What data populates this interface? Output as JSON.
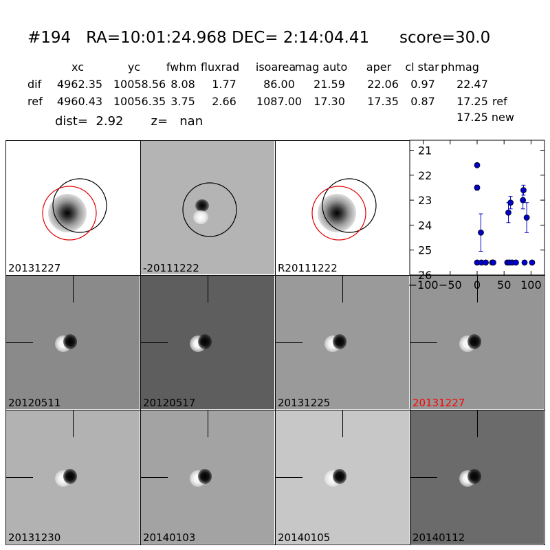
{
  "header": {
    "title": "#194   RA=10:01:24.968 DEC= 2:14:04.41      score=30.0",
    "col_headers": [
      "xc",
      "yc",
      "fwhm",
      "fluxrad",
      "isoarea",
      "mag auto",
      "aper",
      "cl star",
      "phmag"
    ],
    "rows": [
      {
        "label": "dif",
        "values": [
          "4962.35",
          "10058.56",
          "8.08",
          "1.77",
          "86.00",
          "21.59",
          "22.06",
          "0.97",
          "22.47"
        ],
        "suffix": ""
      },
      {
        "label": "ref",
        "values": [
          "4960.43",
          "10056.35",
          "3.75",
          "2.66",
          "1087.00",
          "17.30",
          "17.35",
          "0.87",
          "17.25"
        ],
        "suffix": "ref"
      }
    ],
    "new_line": "17.25 new",
    "dist_label": "dist=",
    "dist_value": "2.92",
    "z_label": "z=",
    "z_value": "nan"
  },
  "panels": [
    {
      "label": "20131227",
      "label_color": "#000000",
      "bg": "#ffffff",
      "type": "stamp"
    },
    {
      "label": "-20111222",
      "label_color": "#000000",
      "bg": "#b4b4b4",
      "type": "diff"
    },
    {
      "label": "R20111222",
      "label_color": "#000000",
      "bg": "#ffffff",
      "type": "stamp"
    },
    {
      "label": "20120511",
      "label_color": "#000000",
      "bg": "#8a8a8a",
      "type": "cut"
    },
    {
      "label": "20120517",
      "label_color": "#000000",
      "bg": "#5e5e5e",
      "type": "cut"
    },
    {
      "label": "20131225",
      "label_color": "#000000",
      "bg": "#9a9a9a",
      "type": "cut"
    },
    {
      "label": "20131227",
      "label_color": "#ff0000",
      "bg": "#959595",
      "type": "cut"
    },
    {
      "label": "20131230",
      "label_color": "#000000",
      "bg": "#b2b2b2",
      "type": "cut"
    },
    {
      "label": "20140103",
      "label_color": "#000000",
      "bg": "#a3a3a3",
      "type": "cut"
    },
    {
      "label": "20140105",
      "label_color": "#000000",
      "bg": "#c7c7c7",
      "type": "cut"
    },
    {
      "label": "20140112",
      "label_color": "#000000",
      "bg": "#6b6b6b",
      "type": "cut"
    }
  ],
  "chart_data": {
    "type": "scatter",
    "title": "",
    "xlabel": "",
    "ylabel": "",
    "xlim": [
      -125,
      125
    ],
    "ylim": [
      26,
      20.6
    ],
    "y_inverted": true,
    "xticks": [
      -100,
      -50,
      0,
      50,
      100
    ],
    "yticks": [
      21,
      22,
      23,
      24,
      25,
      26
    ],
    "marker_color": "#0000cc",
    "series": [
      {
        "points": [
          {
            "x": 0,
            "y": 21.6,
            "err": 0
          },
          {
            "x": 0,
            "y": 22.5,
            "err": 0.1
          },
          {
            "x": 7,
            "y": 24.3,
            "err": 0.75
          },
          {
            "x": 0,
            "y": 25.5,
            "err": 0
          },
          {
            "x": 8,
            "y": 25.5,
            "err": 0
          },
          {
            "x": 16,
            "y": 25.5,
            "err": 0
          },
          {
            "x": 28,
            "y": 25.5,
            "err": 0
          },
          {
            "x": 30,
            "y": 25.5,
            "err": 0
          },
          {
            "x": 56,
            "y": 25.5,
            "err": 0
          },
          {
            "x": 58,
            "y": 23.5,
            "err": 0.4
          },
          {
            "x": 60,
            "y": 25.5,
            "err": 0
          },
          {
            "x": 62,
            "y": 23.1,
            "err": 0.25
          },
          {
            "x": 65,
            "y": 25.5,
            "err": 0
          },
          {
            "x": 72,
            "y": 25.5,
            "err": 0
          },
          {
            "x": 85,
            "y": 23.0,
            "err": 0.35
          },
          {
            "x": 86,
            "y": 22.6,
            "err": 0.2
          },
          {
            "x": 88,
            "y": 25.5,
            "err": 0
          },
          {
            "x": 92,
            "y": 23.7,
            "err": 0.6
          },
          {
            "x": 102,
            "y": 25.5,
            "err": 0
          }
        ]
      }
    ]
  }
}
